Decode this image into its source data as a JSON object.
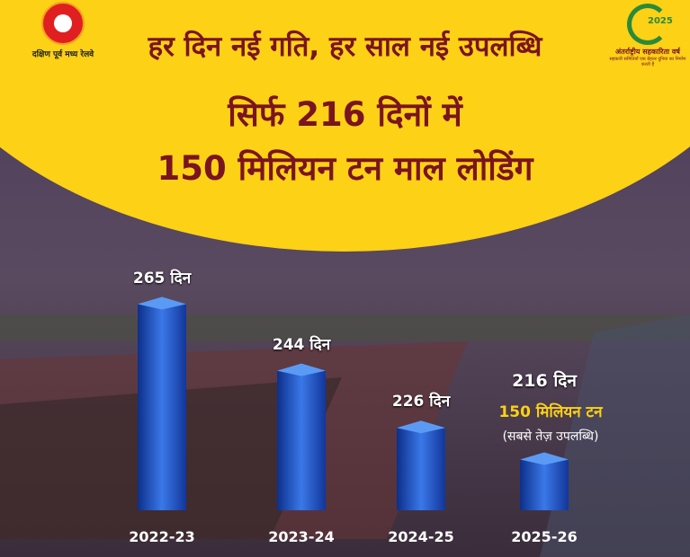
{
  "header": {
    "line1": "हर दिन नई गति, हर साल नई उपलब्धि",
    "line2": "सिर्फ 216 दिनों में",
    "line3": "150 मिलियन टन माल लोडिंग"
  },
  "logos": {
    "left_caption": "दक्षिण पूर्व मध्य रेलवे",
    "right_year": "2025",
    "right_caption": "अंतर्राष्ट्रीय सहकारिता वर्ष",
    "right_tagline": "सहकारी समितियाँ एक बेहतर दुनिया का निर्माण करती हैं"
  },
  "colors": {
    "yellow": "#fcd116",
    "title": "#7a1420",
    "bar": "#1f4fc0",
    "highlight": "#fcd116"
  },
  "chart_data": {
    "type": "bar",
    "categories": [
      "2022-23",
      "2023-24",
      "2024-25",
      "2025-26"
    ],
    "values": [
      265,
      244,
      226,
      216
    ],
    "data_labels": [
      "265 दिन",
      "244 दिन",
      "226 दिन",
      "216 दिन"
    ],
    "unit": "दिन",
    "ylim": [
      200,
      270
    ],
    "grid": false,
    "annotation": {
      "highlight": "150 मिलियन टन",
      "note": "(सबसे तेज़ उपलब्धि)"
    }
  }
}
